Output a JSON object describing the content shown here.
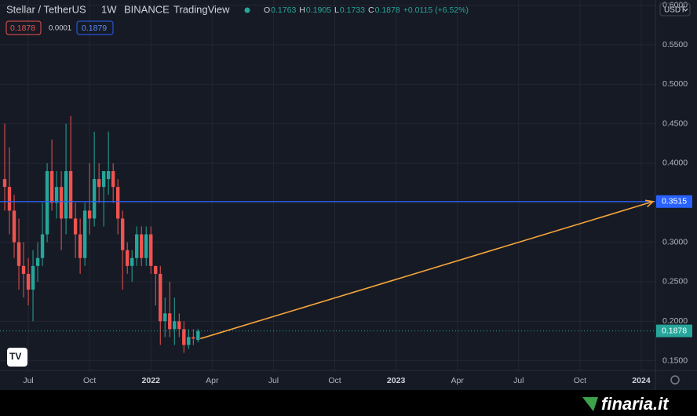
{
  "chart_data": {
    "type": "candlestick",
    "header": {
      "symbol": "Stellar / TetherUS",
      "interval": "1W",
      "exchange": "BINANCE",
      "source": "TradingView",
      "ohlc": [
        {
          "label": "O",
          "value": 0.1763
        },
        {
          "label": "H",
          "value": 0.1905
        },
        {
          "label": "L",
          "value": 0.1733
        },
        {
          "label": "C",
          "value": 0.1878
        }
      ],
      "change": "+0.0115 (+6.52%)"
    },
    "quotes": {
      "sell": 0.1878,
      "spread": 0.0001,
      "buy": 0.1879
    },
    "currency": "USDT",
    "x": [
      0,
      1,
      2,
      3,
      4,
      5,
      6,
      7,
      8,
      9,
      10,
      11,
      12,
      13,
      14,
      15,
      16,
      17,
      18,
      19,
      20,
      21,
      22,
      23,
      24,
      25,
      26,
      27,
      28,
      29,
      30,
      31,
      32,
      33,
      34,
      35,
      36,
      37,
      38,
      39,
      40,
      41
    ],
    "open": [
      0.38,
      0.37,
      0.34,
      0.3,
      0.27,
      0.26,
      0.24,
      0.27,
      0.28,
      0.31,
      0.39,
      0.35,
      0.37,
      0.33,
      0.39,
      0.33,
      0.31,
      0.28,
      0.34,
      0.33,
      0.38,
      0.37,
      0.38,
      0.39,
      0.37,
      0.33,
      0.29,
      0.27,
      0.28,
      0.31,
      0.28,
      0.31,
      0.27,
      0.26,
      0.2,
      0.21,
      0.19,
      0.2,
      0.19,
      0.17,
      0.18,
      0.1763
    ],
    "high": [
      0.45,
      0.42,
      0.36,
      0.33,
      0.3,
      0.28,
      0.29,
      0.3,
      0.35,
      0.4,
      0.43,
      0.39,
      0.39,
      0.45,
      0.46,
      0.35,
      0.33,
      0.35,
      0.4,
      0.44,
      0.4,
      0.39,
      0.44,
      0.4,
      0.38,
      0.34,
      0.3,
      0.29,
      0.32,
      0.32,
      0.32,
      0.32,
      0.27,
      0.27,
      0.23,
      0.25,
      0.23,
      0.21,
      0.2,
      0.19,
      0.19,
      0.1905
    ],
    "low": [
      0.34,
      0.31,
      0.28,
      0.24,
      0.23,
      0.22,
      0.2,
      0.25,
      0.27,
      0.3,
      0.34,
      0.33,
      0.29,
      0.31,
      0.33,
      0.28,
      0.26,
      0.27,
      0.31,
      0.32,
      0.35,
      0.32,
      0.36,
      0.35,
      0.31,
      0.24,
      0.26,
      0.25,
      0.27,
      0.27,
      0.27,
      0.26,
      0.22,
      0.17,
      0.18,
      0.18,
      0.17,
      0.18,
      0.16,
      0.165,
      0.17,
      0.1733
    ],
    "close": [
      0.37,
      0.34,
      0.3,
      0.27,
      0.26,
      0.24,
      0.27,
      0.28,
      0.31,
      0.39,
      0.35,
      0.37,
      0.33,
      0.39,
      0.33,
      0.31,
      0.28,
      0.34,
      0.33,
      0.38,
      0.37,
      0.39,
      0.39,
      0.37,
      0.33,
      0.29,
      0.27,
      0.28,
      0.31,
      0.28,
      0.31,
      0.27,
      0.26,
      0.2,
      0.21,
      0.19,
      0.2,
      0.19,
      0.17,
      0.18,
      0.178,
      0.1878
    ],
    "up_color": "#26a69a",
    "down_color": "#ef5350",
    "xlim": [
      -1,
      138
    ],
    "xticks": [
      {
        "value": 5,
        "label": "Jul"
      },
      {
        "value": 18,
        "label": "Oct"
      },
      {
        "value": 31,
        "label": "2022"
      },
      {
        "value": 44,
        "label": "Apr"
      },
      {
        "value": 57,
        "label": "Jul"
      },
      {
        "value": 70,
        "label": "Oct"
      },
      {
        "value": 83,
        "label": "2023"
      },
      {
        "value": 96,
        "label": "Apr"
      },
      {
        "value": 109,
        "label": "Jul"
      },
      {
        "value": 122,
        "label": "Oct"
      },
      {
        "value": 135,
        "label": "2024"
      }
    ],
    "ylim": [
      0.1377,
      0.6066
    ],
    "yticks": [
      {
        "value": 0.6,
        "label": "0.6000"
      },
      {
        "value": 0.55,
        "label": "0.5500"
      },
      {
        "value": 0.5,
        "label": "0.5000"
      },
      {
        "value": 0.45,
        "label": "0.4500"
      },
      {
        "value": 0.4,
        "label": "0.4000"
      },
      {
        "value": 0.35,
        "label": "0.3500"
      },
      {
        "value": 0.3,
        "label": "0.3000"
      },
      {
        "value": 0.25,
        "label": "0.2500"
      },
      {
        "value": 0.2,
        "label": "0.2000"
      },
      {
        "value": 0.15,
        "label": "0.1500"
      }
    ],
    "grid": true,
    "level_line": {
      "value": 0.3515,
      "color": "#2962ff"
    },
    "last_price": 0.1878,
    "arrow": {
      "x": [
        41.5,
        137.5
      ],
      "y": [
        0.178,
        0.3515
      ],
      "color": "#f7a53b"
    },
    "brand": "finaria.it"
  }
}
